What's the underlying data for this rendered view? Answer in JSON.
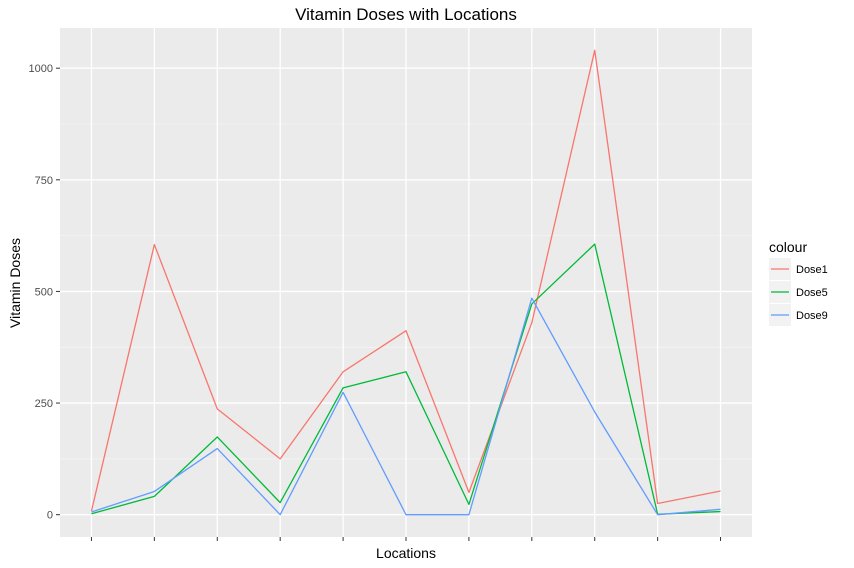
{
  "chart_data": {
    "type": "line",
    "title": "Vitamin Doses with Locations",
    "xlabel": "Locations",
    "ylabel": "Vitamin Doses",
    "ylim": [
      -50,
      1090
    ],
    "y_ticks": [
      0,
      250,
      500,
      750,
      1000
    ],
    "y_tick_labels": [
      "0",
      "250",
      "500",
      "750",
      "1000"
    ],
    "x": [
      1,
      2,
      3,
      4,
      5,
      6,
      7,
      8,
      9,
      10,
      11
    ],
    "x_tick_labels": [
      "",
      "",
      "",
      "",
      "",
      "",
      "",
      "",
      "",
      "",
      ""
    ],
    "grid": true,
    "legend_title": "colour",
    "legend_position": "right",
    "series": [
      {
        "name": "Dose1",
        "color": "#F8766D",
        "values": [
          8,
          605,
          237,
          125,
          320,
          412,
          50,
          430,
          1040,
          25,
          53
        ]
      },
      {
        "name": "Dose5",
        "color": "#00BA38",
        "values": [
          2,
          41,
          174,
          27,
          284,
          320,
          23,
          472,
          606,
          1,
          7
        ]
      },
      {
        "name": "Dose9",
        "color": "#619CFF",
        "values": [
          6,
          52,
          148,
          0,
          274,
          0,
          0,
          485,
          230,
          0,
          12
        ]
      }
    ]
  }
}
